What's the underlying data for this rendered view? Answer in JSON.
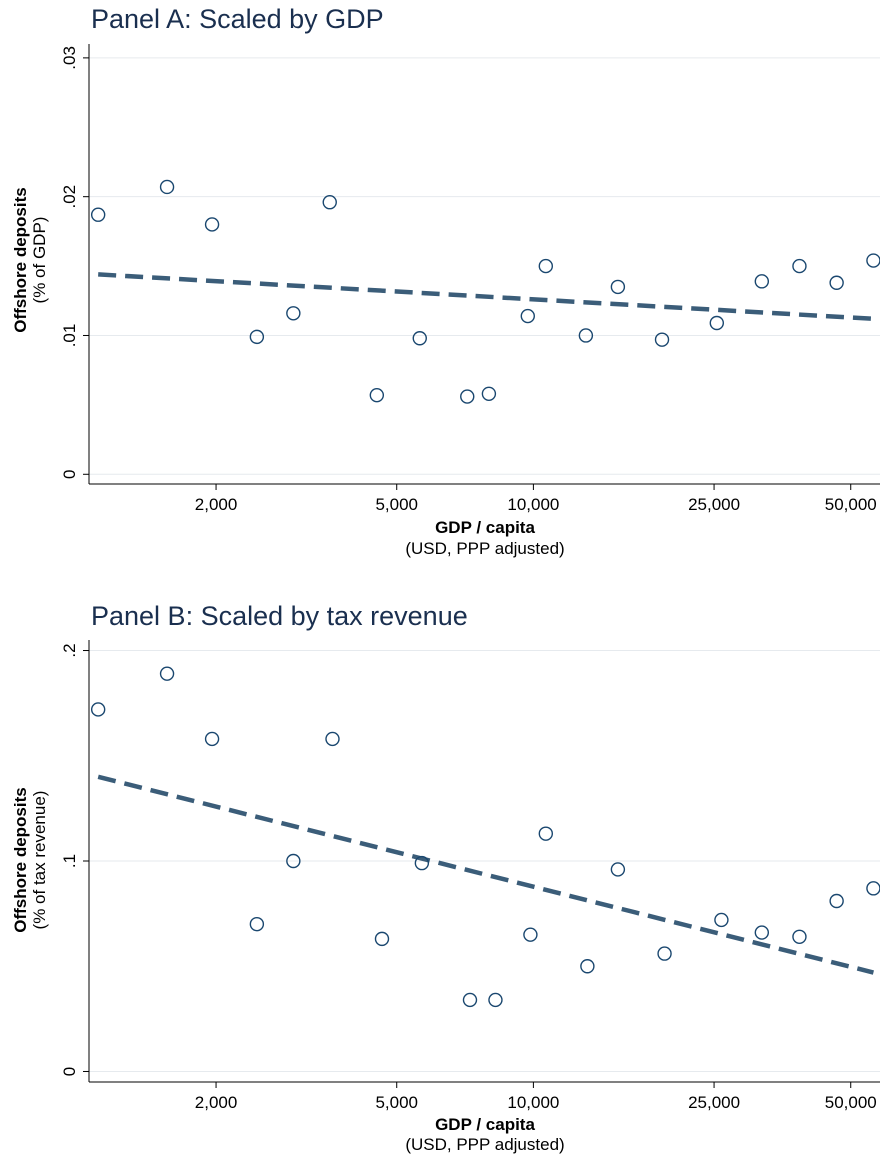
{
  "chart_data": [
    {
      "type": "scatter",
      "title": "Panel A: Scaled by GDP",
      "xlabel": "GDP / capita",
      "xlabel_sub": "(USD, PPP adjusted)",
      "ylabel": "Offshore deposits",
      "ylabel_sub": "(% of GDP)",
      "x_scale": "log",
      "xlim": [
        1050,
        58000
      ],
      "ylim": [
        -0.0007,
        0.031
      ],
      "x_ticks": [
        2000,
        5000,
        10000,
        25000,
        50000
      ],
      "x_tick_labels": [
        "2,000",
        "5,000",
        "10,000",
        "25,000",
        "50,000"
      ],
      "y_ticks": [
        0,
        0.01,
        0.02,
        0.03
      ],
      "y_tick_labels": [
        "0",
        ".01",
        ".02",
        ".03"
      ],
      "grid": true,
      "marker_color": "#1a476f",
      "fit_color": "#3b5d79",
      "points": [
        {
          "x": 1100,
          "y": 0.0187
        },
        {
          "x": 1560,
          "y": 0.0207
        },
        {
          "x": 1960,
          "y": 0.018
        },
        {
          "x": 2460,
          "y": 0.0099
        },
        {
          "x": 2960,
          "y": 0.0116
        },
        {
          "x": 3560,
          "y": 0.0196
        },
        {
          "x": 4520,
          "y": 0.0057
        },
        {
          "x": 5620,
          "y": 0.0098
        },
        {
          "x": 7150,
          "y": 0.0056
        },
        {
          "x": 7980,
          "y": 0.0058
        },
        {
          "x": 9720,
          "y": 0.0114
        },
        {
          "x": 10650,
          "y": 0.015
        },
        {
          "x": 13050,
          "y": 0.01
        },
        {
          "x": 15350,
          "y": 0.0135
        },
        {
          "x": 19200,
          "y": 0.0097
        },
        {
          "x": 25350,
          "y": 0.0109
        },
        {
          "x": 31850,
          "y": 0.0139
        },
        {
          "x": 38550,
          "y": 0.015
        },
        {
          "x": 46550,
          "y": 0.0138
        },
        {
          "x": 56100,
          "y": 0.0154
        }
      ],
      "fit_line": {
        "x": [
          1100,
          56100
        ],
        "y": [
          0.0144,
          0.0112
        ]
      }
    },
    {
      "type": "scatter",
      "title": "Panel B: Scaled by tax revenue",
      "xlabel": "GDP / capita",
      "xlabel_sub": "(USD, PPP adjusted)",
      "ylabel": "Offshore deposits",
      "ylabel_sub": "(% of tax revenue)",
      "x_scale": "log",
      "xlim": [
        1050,
        58000
      ],
      "ylim": [
        -0.005,
        0.205
      ],
      "x_ticks": [
        2000,
        5000,
        10000,
        25000,
        50000
      ],
      "x_tick_labels": [
        "2,000",
        "5,000",
        "10,000",
        "25,000",
        "50,000"
      ],
      "y_ticks": [
        0,
        0.1,
        0.2
      ],
      "y_tick_labels": [
        "0",
        ".1",
        ".2"
      ],
      "grid": true,
      "marker_color": "#1a476f",
      "fit_color": "#3b5d79",
      "points": [
        {
          "x": 1100,
          "y": 0.172
        },
        {
          "x": 1560,
          "y": 0.189
        },
        {
          "x": 1960,
          "y": 0.158
        },
        {
          "x": 2460,
          "y": 0.07
        },
        {
          "x": 2960,
          "y": 0.1
        },
        {
          "x": 3610,
          "y": 0.158
        },
        {
          "x": 4640,
          "y": 0.063
        },
        {
          "x": 5680,
          "y": 0.099
        },
        {
          "x": 7250,
          "y": 0.034
        },
        {
          "x": 8250,
          "y": 0.034
        },
        {
          "x": 9850,
          "y": 0.065
        },
        {
          "x": 10650,
          "y": 0.113
        },
        {
          "x": 13150,
          "y": 0.05
        },
        {
          "x": 15350,
          "y": 0.096
        },
        {
          "x": 19450,
          "y": 0.056
        },
        {
          "x": 25950,
          "y": 0.072
        },
        {
          "x": 31850,
          "y": 0.066
        },
        {
          "x": 38550,
          "y": 0.064
        },
        {
          "x": 46550,
          "y": 0.081
        },
        {
          "x": 56100,
          "y": 0.087
        }
      ],
      "fit_line": {
        "x": [
          1100,
          56100
        ],
        "y": [
          0.14,
          0.047
        ]
      }
    }
  ]
}
